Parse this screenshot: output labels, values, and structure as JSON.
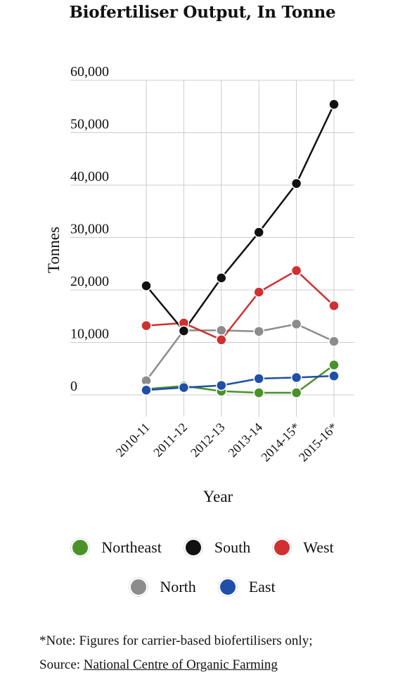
{
  "title": "Biofertiliser Output, In Tonne",
  "chart_data": {
    "type": "line",
    "title": "Biofertiliser Output, In Tonne",
    "xlabel": "Year",
    "ylabel": "Tonnes",
    "categories": [
      "2010-11",
      "2011-12",
      "2012-13",
      "2013-14",
      "2014-15*",
      "2015-16*"
    ],
    "ylim": [
      0,
      60000
    ],
    "yticks": [
      0,
      10000,
      20000,
      30000,
      40000,
      50000,
      60000
    ],
    "ytick_labels": [
      "0",
      "10,000",
      "20,000",
      "30,000",
      "40,000",
      "50,000",
      "60,000"
    ],
    "grid": true,
    "legend_position": "bottom",
    "series": [
      {
        "name": "Northeast",
        "color": "#4a9128",
        "values": [
          1100,
          1700,
          700,
          400,
          400,
          5700
        ]
      },
      {
        "name": "South",
        "color": "#111111",
        "values": [
          20800,
          12200,
          22300,
          31000,
          40300,
          55400
        ]
      },
      {
        "name": "West",
        "color": "#cf3030",
        "values": [
          13200,
          13700,
          10500,
          19600,
          23700,
          17000
        ]
      },
      {
        "name": "North",
        "color": "#8c8c8c",
        "values": [
          2700,
          12300,
          12300,
          12100,
          13500,
          10200
        ]
      },
      {
        "name": "East",
        "color": "#1f4fa8",
        "values": [
          900,
          1400,
          1800,
          3100,
          3300,
          3600
        ]
      }
    ]
  },
  "legend_rows": [
    [
      {
        "label": "Northeast",
        "color": "#4a9128"
      },
      {
        "label": "South",
        "color": "#111111"
      },
      {
        "label": "West",
        "color": "#cf3030"
      }
    ],
    [
      {
        "label": "North",
        "color": "#8c8c8c"
      },
      {
        "label": "East",
        "color": "#1f4fa8"
      }
    ]
  ],
  "note": "*Note: Figures for carrier-based biofertilisers only;",
  "source_prefix": "Source: ",
  "source_link": "National Centre of Organic Farming"
}
